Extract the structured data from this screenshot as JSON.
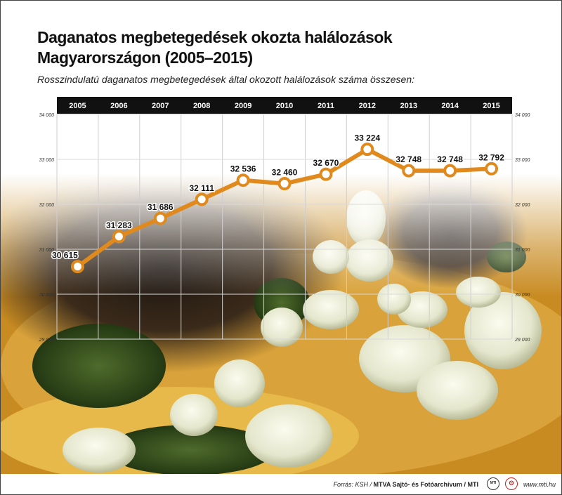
{
  "title_lines": [
    "Daganatos megbetegedések okozta halálozások",
    "Magyarországon (2005–2015)"
  ],
  "subtitle": "Rosszindulatú daganatos megbetegedések által okozott halálozások száma összesen:",
  "chart_data": {
    "type": "line",
    "title": "Daganatos megbetegedések okozta halálozások Magyarországon (2005–2015)",
    "subtitle": "Rosszindulatú daganatos megbetegedések által okozott halálozások száma összesen:",
    "x": [
      "2005",
      "2006",
      "2007",
      "2008",
      "2009",
      "2010",
      "2011",
      "2012",
      "2013",
      "2014",
      "2015"
    ],
    "series": [
      {
        "values": [
          30615,
          31283,
          31686,
          32111,
          32536,
          32460,
          32670,
          33224,
          32748,
          32748,
          32792
        ],
        "labels": [
          "30 615",
          "31 283",
          "31 686",
          "32 111",
          "32 536",
          "32 460",
          "32 670",
          "33 224",
          "32 748",
          "32 748",
          "32 792"
        ],
        "color": "#e08a1e"
      }
    ],
    "ylim": [
      29000,
      34000
    ],
    "y_ticks": [
      29000,
      30000,
      31000,
      32000,
      33000,
      34000
    ],
    "y_tick_labels": [
      "29 000",
      "30 000",
      "31 000",
      "32 000",
      "33 000",
      "34 000"
    ],
    "x_axis_position": "top",
    "y_axis": "both sides",
    "grid": true,
    "xlabel": "",
    "ylabel": ""
  },
  "footer": {
    "source_prefix": "Forrás: KSH /",
    "source_bold": "MTVA Sajtó- és Fotóarchívum / MTI",
    "logo_mti": "MTI",
    "logo_red": "ʘ",
    "website": "www.mti.hu"
  },
  "colors": {
    "line": "#e08a1e",
    "year_bar": "#111111",
    "background_tissue": "#c98a1a"
  }
}
